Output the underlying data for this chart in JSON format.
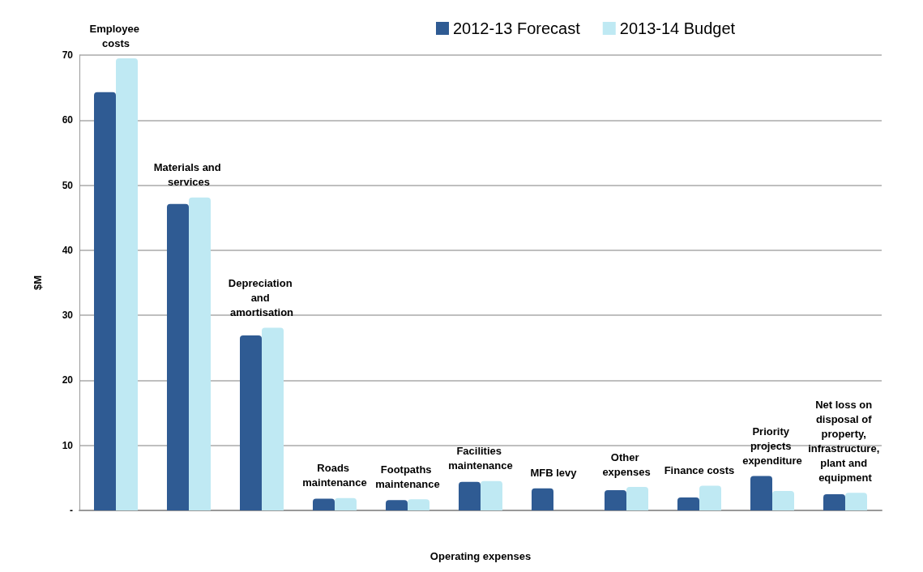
{
  "chart_data": {
    "type": "bar",
    "xlabel": "Operating expenses",
    "ylabel": "$M",
    "categories": [
      "Employee costs",
      "Materials and services",
      "Depreciation and amortisation",
      "Roads maintenance",
      "Footpaths maintenance",
      "Facilities maintenance",
      "MFB levy",
      "Other expenses",
      "Finance costs",
      "Priority projects expenditure",
      "Net loss on disposal of property, infrastructure, plant and equipment"
    ],
    "series": [
      {
        "name": "2012-13 Forecast",
        "color": "#2f5b93",
        "values": [
          64.3,
          47.1,
          26.9,
          1.8,
          1.6,
          4.4,
          3.4,
          3.1,
          2.0,
          5.3,
          2.5
        ]
      },
      {
        "name": "2013-14 Budget",
        "color": "#bfe9f3",
        "values": [
          69.5,
          48.1,
          28.1,
          1.9,
          1.7,
          4.5,
          null,
          3.6,
          3.8,
          3.0,
          2.7
        ]
      }
    ],
    "ylim": [
      0,
      70
    ],
    "yticks": [
      {
        "value": 0,
        "label": "-"
      },
      10,
      20,
      30,
      40,
      50,
      60,
      70
    ],
    "grid": "y",
    "legend": "top right"
  }
}
